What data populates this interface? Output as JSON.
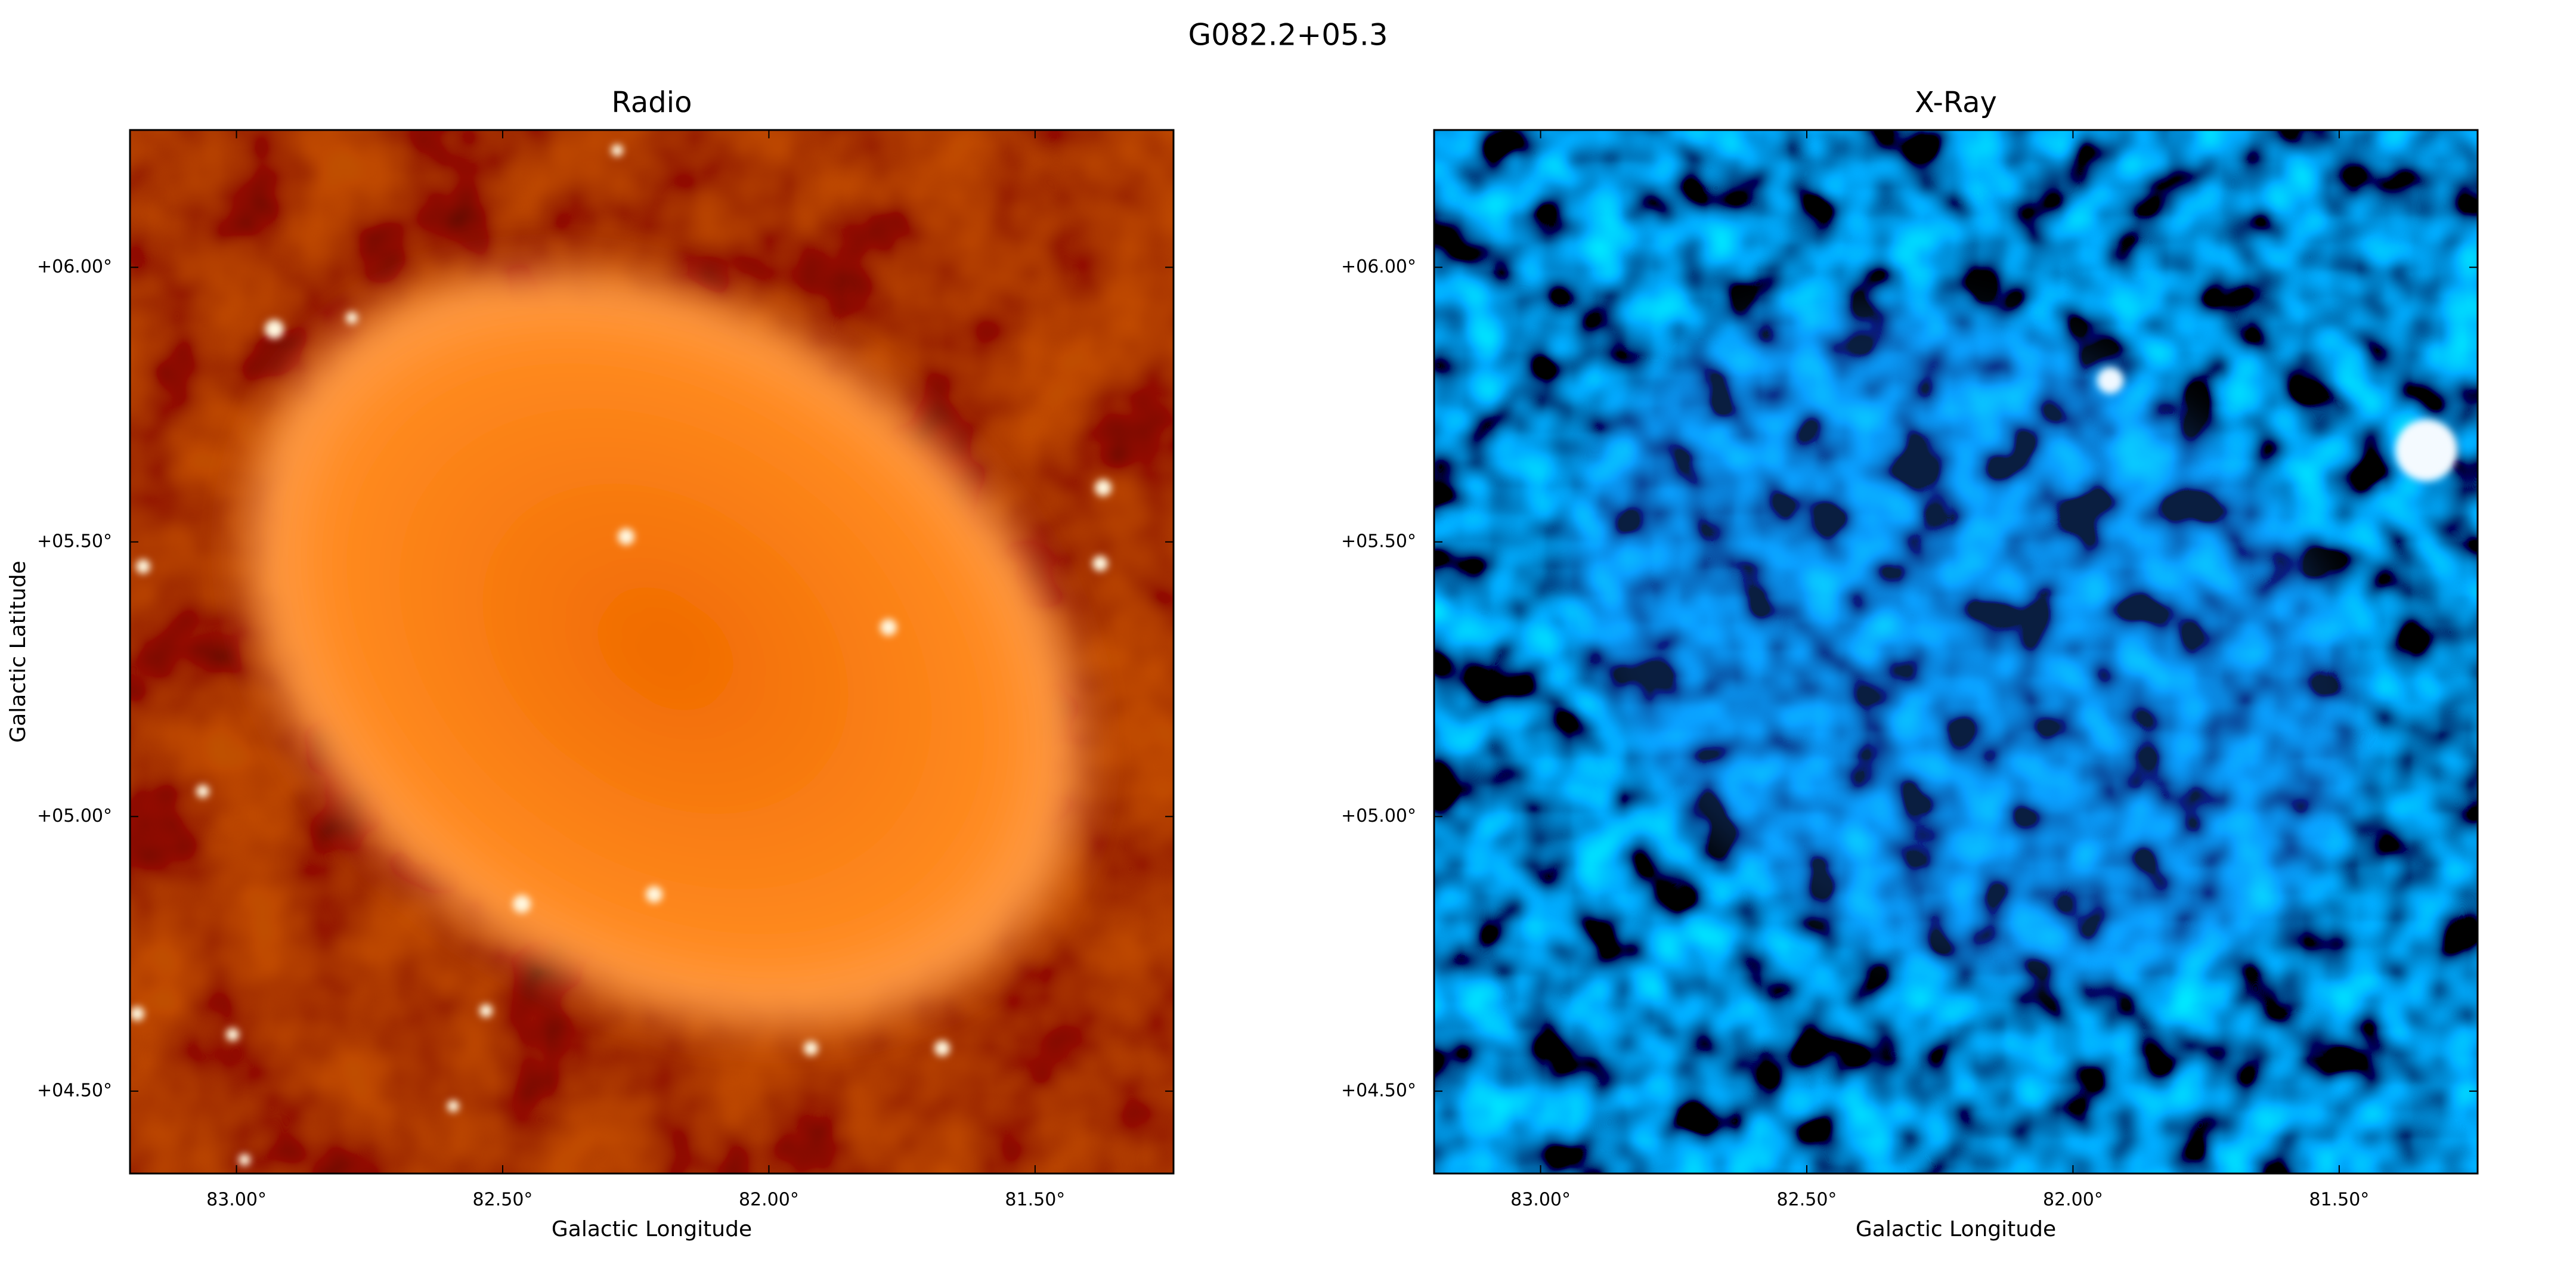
{
  "title": "G082.2+05.3",
  "chart_data": [
    {
      "type": "image",
      "title": "Radio",
      "x_label": "Galactic Longitude",
      "y_label": "Galactic Latitude",
      "xlim": [
        83.2,
        81.24
      ],
      "ylim": [
        4.35,
        6.25
      ],
      "xticks": [
        {
          "value": 83.0,
          "label": "83.00°"
        },
        {
          "value": 82.5,
          "label": "82.50°"
        },
        {
          "value": 82.0,
          "label": "82.00°"
        },
        {
          "value": 81.5,
          "label": "81.50°"
        }
      ],
      "yticks": [
        {
          "value": 6.0,
          "label": "+06.00°"
        },
        {
          "value": 5.5,
          "label": "+05.50°"
        },
        {
          "value": 5.0,
          "label": "+05.00°"
        },
        {
          "value": 4.5,
          "label": "+04.50°"
        }
      ]
    },
    {
      "type": "image",
      "title": "X-Ray",
      "x_label": "Galactic Longitude",
      "xlim": [
        83.2,
        81.24
      ],
      "ylim": [
        4.35,
        6.25
      ],
      "xticks": [
        {
          "value": 83.0,
          "label": "83.00°"
        },
        {
          "value": 82.5,
          "label": "82.50°"
        },
        {
          "value": 82.0,
          "label": "82.00°"
        },
        {
          "value": 81.5,
          "label": "81.50°"
        }
      ],
      "yticks": [
        {
          "value": 6.0,
          "label": "+06.00°"
        },
        {
          "value": 5.5,
          "label": "+05.50°"
        },
        {
          "value": 5.0,
          "label": "+05.00°"
        },
        {
          "value": 4.5,
          "label": "+04.50°"
        }
      ]
    }
  ]
}
